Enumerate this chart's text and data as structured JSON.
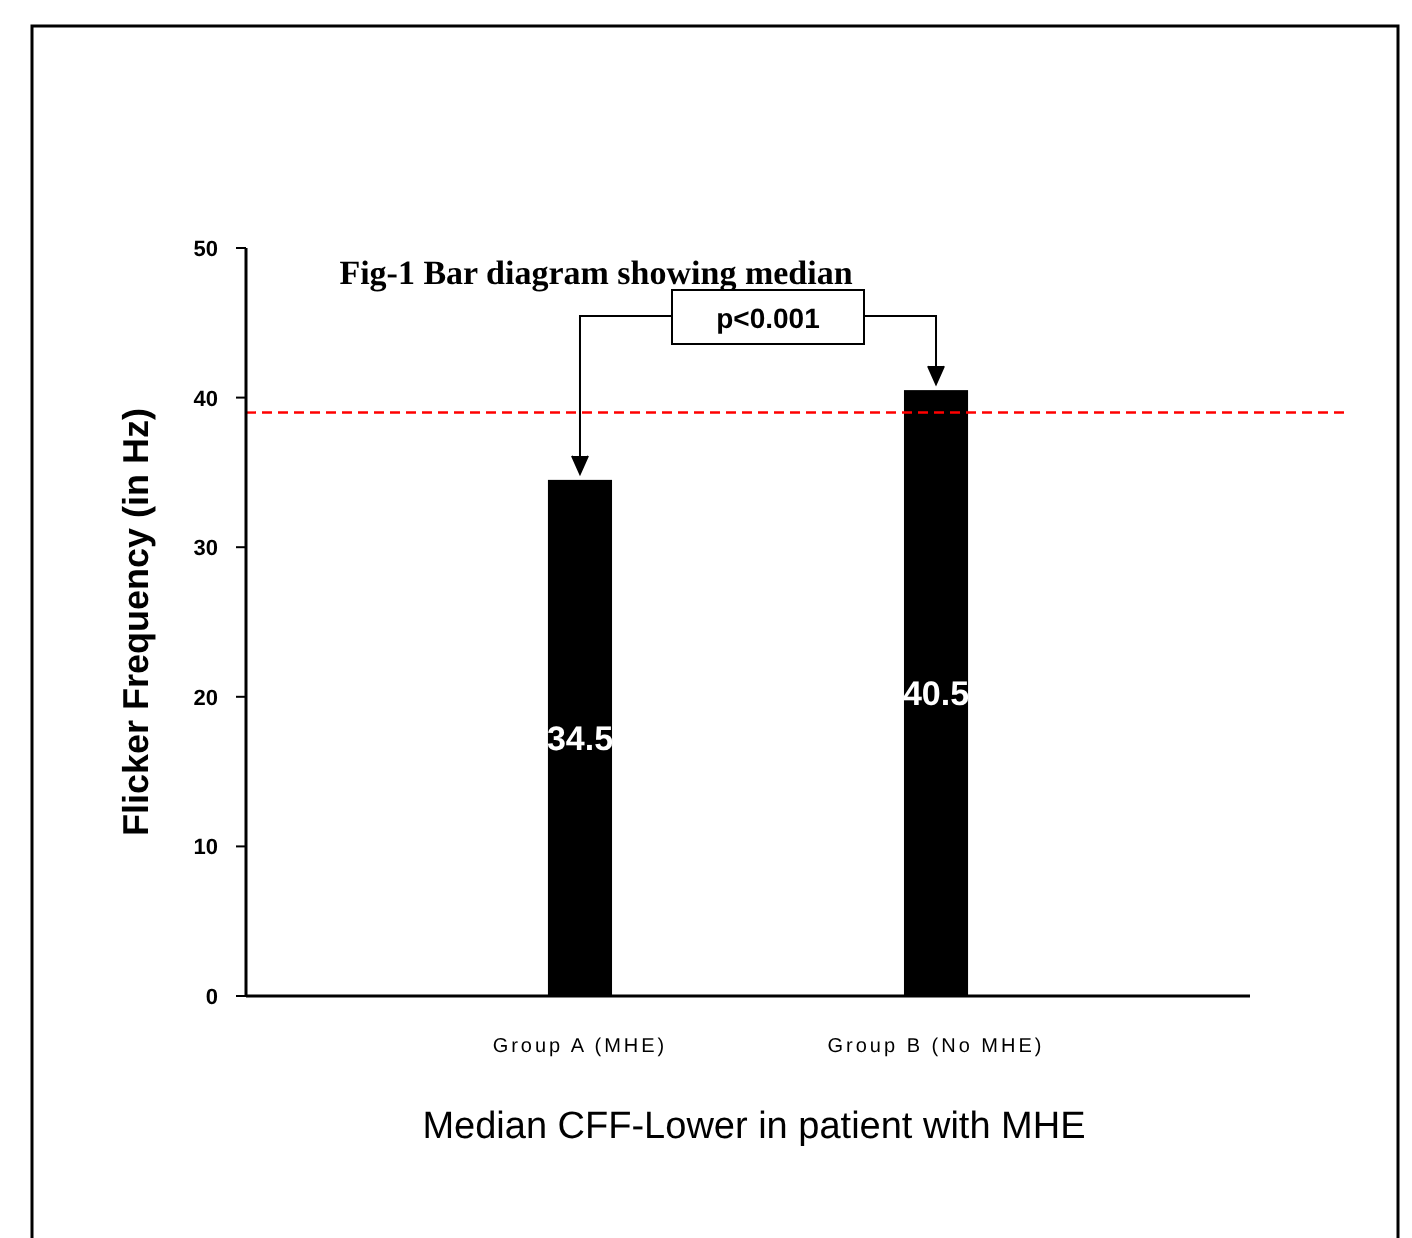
{
  "chart_data": {
    "type": "bar",
    "title": "Fig-1 Bar diagram showing median",
    "xlabel": "Median CFF-Lower in patient with MHE",
    "ylabel": "Flicker Frequency (in Hz)",
    "categories": [
      "Group A (MHE)",
      "Group B (No MHE)"
    ],
    "values": [
      34.5,
      40.5
    ],
    "color": "#000000",
    "ylim": [
      0,
      50
    ],
    "yticks": [
      0,
      10,
      20,
      30,
      40,
      50
    ],
    "grid": false,
    "data_labels": true,
    "ref_lines": [
      {
        "axis": "y",
        "value": 39,
        "color": "#ff0000",
        "line_style": "dashed"
      }
    ],
    "annotations": [
      "p<0.001"
    ]
  }
}
